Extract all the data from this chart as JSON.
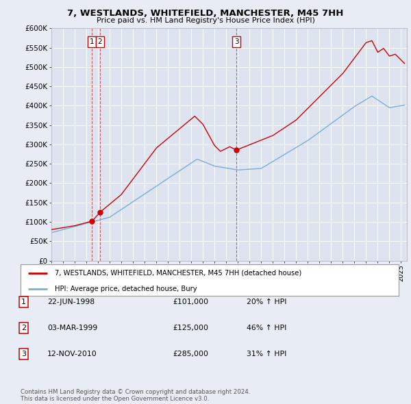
{
  "title": "7, WESTLANDS, WHITEFIELD, MANCHESTER, M45 7HH",
  "subtitle": "Price paid vs. HM Land Registry's House Price Index (HPI)",
  "ylabel_ticks": [
    "£0",
    "£50K",
    "£100K",
    "£150K",
    "£200K",
    "£250K",
    "£300K",
    "£350K",
    "£400K",
    "£450K",
    "£500K",
    "£550K",
    "£600K"
  ],
  "ytick_values": [
    0,
    50000,
    100000,
    150000,
    200000,
    250000,
    300000,
    350000,
    400000,
    450000,
    500000,
    550000,
    600000
  ],
  "background_color": "#e8edf5",
  "plot_bg_color": "#dde4f0",
  "grid_color": "#ffffff",
  "red_color": "#cc0000",
  "blue_color": "#7aadd4",
  "legend_label_red": "7, WESTLANDS, WHITEFIELD, MANCHESTER, M45 7HH (detached house)",
  "legend_label_blue": "HPI: Average price, detached house, Bury",
  "sale_points": [
    {
      "date": 1998.47,
      "price": 101000,
      "label": "1"
    },
    {
      "date": 1999.17,
      "price": 125000,
      "label": "2"
    },
    {
      "date": 2010.87,
      "price": 285000,
      "label": "3"
    }
  ],
  "table_rows": [
    {
      "num": "1",
      "date": "22-JUN-1998",
      "price": "£101,000",
      "change": "20% ↑ HPI"
    },
    {
      "num": "2",
      "date": "03-MAR-1999",
      "price": "£125,000",
      "change": "46% ↑ HPI"
    },
    {
      "num": "3",
      "date": "12-NOV-2010",
      "price": "£285,000",
      "change": "31% ↑ HPI"
    }
  ],
  "footer": "Contains HM Land Registry data © Crown copyright and database right 2024.\nThis data is licensed under the Open Government Licence v3.0.",
  "xmin": 1995.0,
  "xmax": 2025.5,
  "ymin": 0,
  "ymax": 600000
}
